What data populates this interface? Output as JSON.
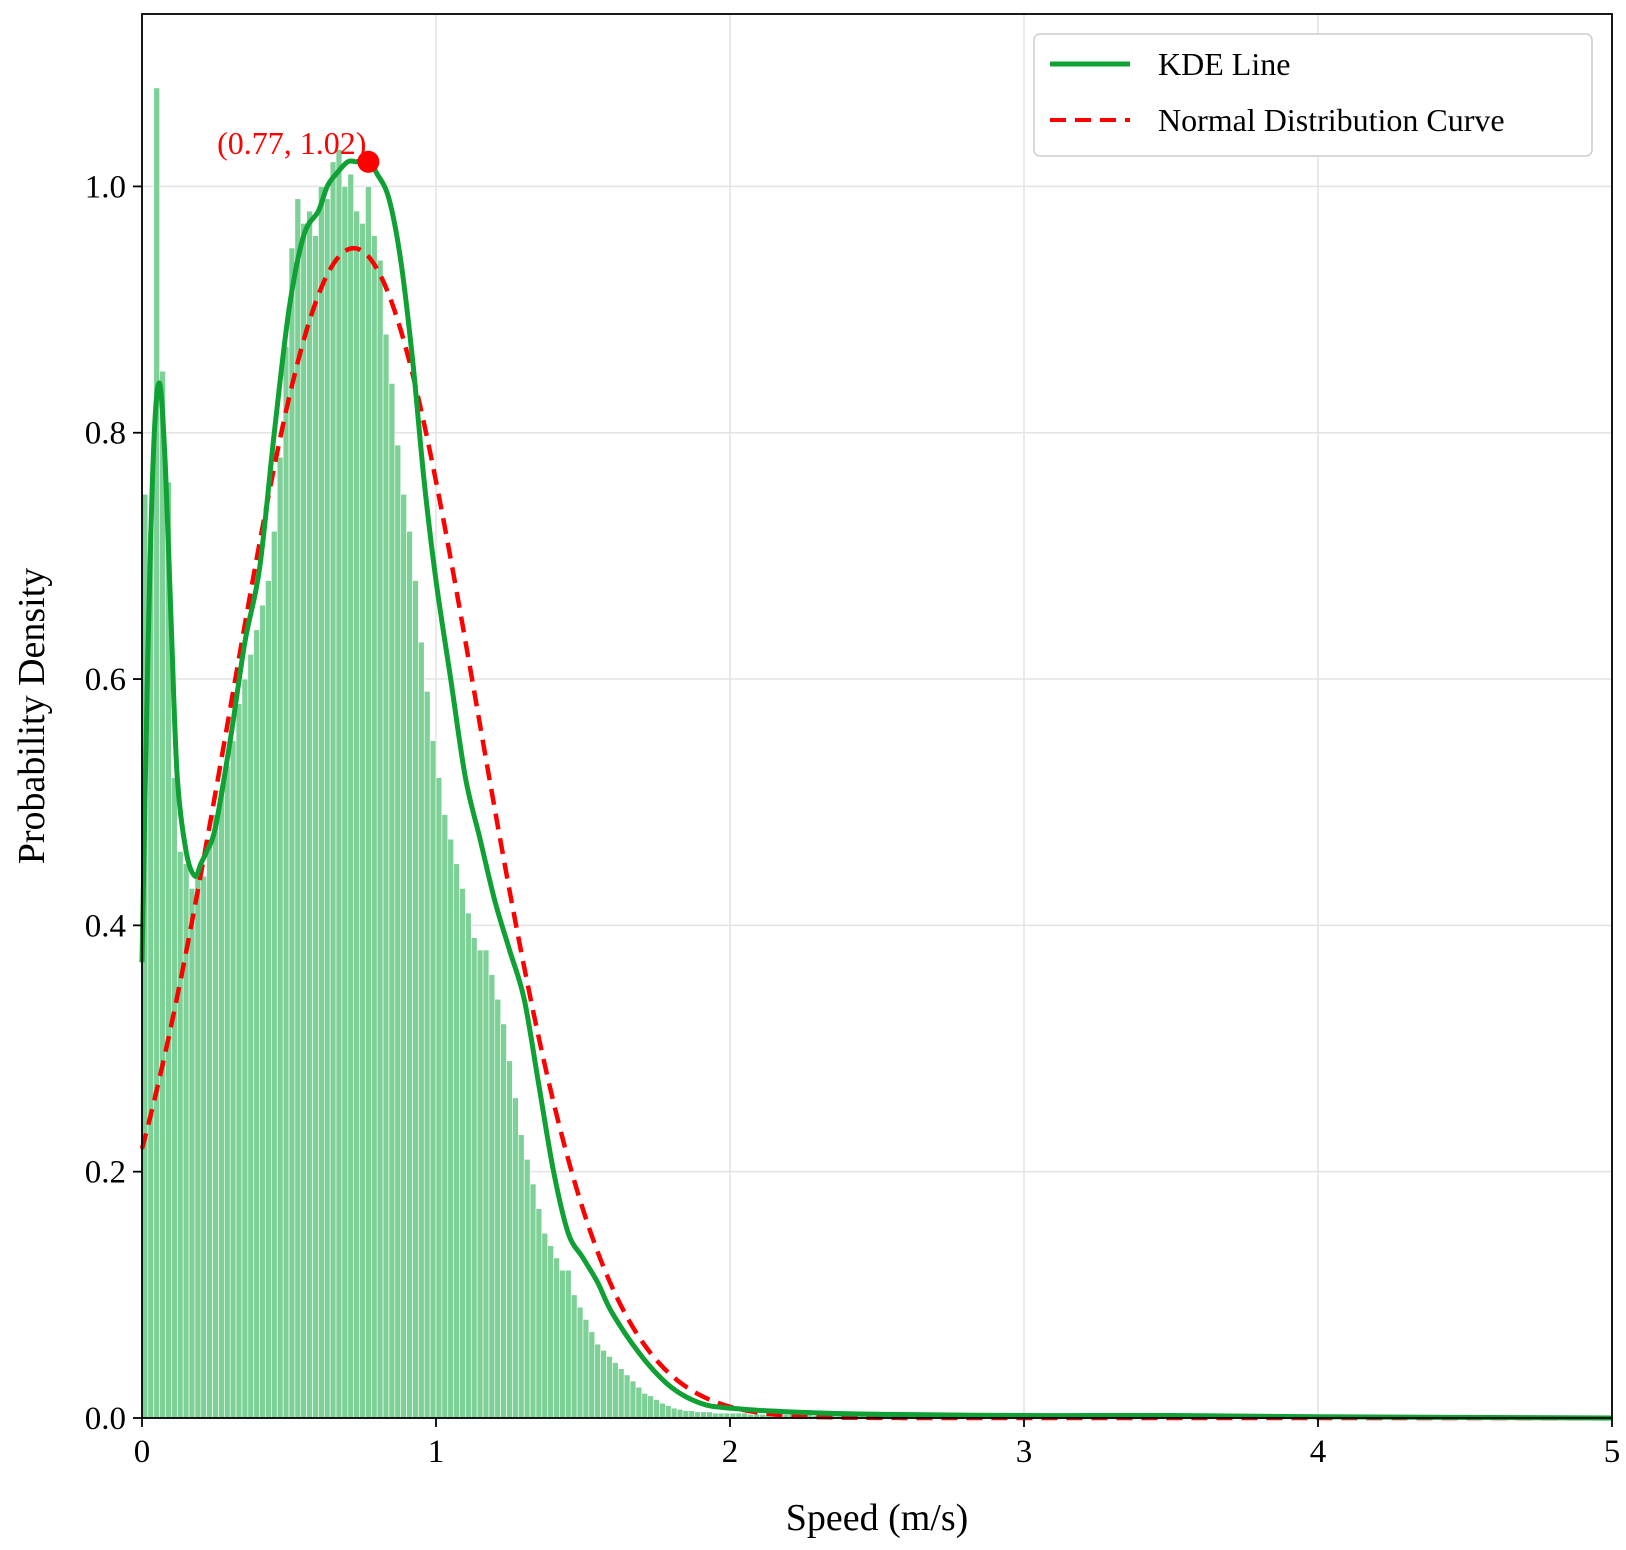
{
  "chart_data": {
    "type": "bar",
    "title": "",
    "xlabel": "Speed (m/s)",
    "ylabel": "Probability Density",
    "xlim": [
      0,
      5
    ],
    "ylim": [
      0,
      1.14
    ],
    "x_ticks": [
      0,
      1,
      2,
      3,
      4,
      5
    ],
    "x_tick_labels": [
      "0",
      "1",
      "2",
      "3",
      "4",
      "5"
    ],
    "y_ticks": [
      0.0,
      0.2,
      0.4,
      0.6,
      0.8,
      1.0
    ],
    "y_tick_labels": [
      "0.0",
      "0.2",
      "0.4",
      "0.6",
      "0.8",
      "1.0"
    ],
    "grid": true,
    "legend_position": "top-right",
    "histogram": {
      "bin_width": 0.02,
      "bin_start": 0,
      "color": "#7dd197",
      "edge_color": "#ffffff",
      "density": [
        0.75,
        0.72,
        1.08,
        0.85,
        0.76,
        0.52,
        0.46,
        0.45,
        0.43,
        0.44,
        0.44,
        0.47,
        0.49,
        0.51,
        0.53,
        0.55,
        0.58,
        0.6,
        0.62,
        0.64,
        0.66,
        0.68,
        0.72,
        0.78,
        0.87,
        0.95,
        0.99,
        0.97,
        0.98,
        0.96,
        1.0,
        0.99,
        1.02,
        1.03,
        1.0,
        1.01,
        0.98,
        0.97,
        1.0,
        0.96,
        0.94,
        0.88,
        0.84,
        0.79,
        0.75,
        0.72,
        0.68,
        0.63,
        0.59,
        0.55,
        0.52,
        0.49,
        0.47,
        0.45,
        0.43,
        0.41,
        0.39,
        0.38,
        0.38,
        0.36,
        0.34,
        0.32,
        0.29,
        0.26,
        0.23,
        0.21,
        0.19,
        0.17,
        0.15,
        0.14,
        0.13,
        0.12,
        0.12,
        0.1,
        0.09,
        0.08,
        0.07,
        0.06,
        0.055,
        0.05,
        0.045,
        0.04,
        0.035,
        0.03,
        0.025,
        0.02,
        0.018,
        0.015,
        0.012,
        0.01,
        0.008,
        0.007,
        0.006,
        0.006,
        0.005,
        0.005,
        0.005,
        0.004,
        0.004,
        0.004,
        0.004,
        0.004,
        0.004,
        0.003,
        0.003,
        0.003,
        0.003,
        0.003,
        0.003,
        0.003,
        0.003,
        0.003,
        0.003,
        0.003,
        0.002,
        0.002,
        0.002,
        0.002,
        0.002,
        0.002,
        0.002,
        0.002,
        0.002,
        0.002,
        0.002,
        0.002,
        0.002,
        0.002,
        0.002,
        0.002,
        0.002,
        0.002,
        0.002,
        0.002,
        0.002,
        0.002,
        0.002,
        0.002,
        0.002,
        0.002,
        0.002,
        0.002,
        0.002,
        0.002,
        0.002,
        0.002,
        0.002,
        0.002,
        0.002,
        0.002,
        0.002,
        0.002,
        0.002,
        0.002,
        0.002,
        0.002,
        0.002,
        0.002,
        0.002,
        0.002,
        0.002,
        0.002,
        0.002,
        0.002,
        0.002,
        0.002,
        0.002,
        0.002,
        0.002,
        0.002,
        0.002,
        0.002,
        0.002,
        0.002,
        0.002,
        0.002,
        0.002,
        0.002,
        0.002,
        0.002,
        0.002,
        0.002,
        0.002,
        0.002,
        0.002,
        0.002,
        0.002,
        0.002,
        0.002,
        0.002,
        0.002,
        0.002,
        0.002,
        0.002,
        0.002,
        0.002,
        0.002,
        0.002,
        0.002,
        0.002,
        0.002,
        0.002,
        0.002,
        0.002,
        0.002,
        0.002,
        0.002,
        0.002,
        0.002,
        0.002,
        0.002,
        0.002,
        0.002,
        0.002,
        0.002,
        0.002,
        0.002,
        0.002,
        0.002,
        0.002,
        0.002,
        0.002,
        0.002,
        0.002,
        0.002,
        0.002,
        0.002,
        0.002,
        0.002,
        0.002,
        0.002,
        0.002,
        0.002,
        0.002,
        0.002,
        0.002,
        0.002,
        0.002,
        0.002,
        0.002,
        0.001,
        0.001,
        0.001,
        0.001,
        0.001,
        0.001,
        0.001,
        0.001,
        0.001,
        0.001
      ]
    },
    "series": [
      {
        "name": "KDE Line",
        "style": "solid",
        "color": "#0fa134",
        "x": [
          0,
          0.02,
          0.04,
          0.06,
          0.08,
          0.1,
          0.12,
          0.15,
          0.18,
          0.2,
          0.22,
          0.25,
          0.3,
          0.35,
          0.4,
          0.45,
          0.5,
          0.55,
          0.6,
          0.63,
          0.66,
          0.7,
          0.73,
          0.77,
          0.8,
          0.84,
          0.88,
          0.92,
          0.96,
          1.0,
          1.05,
          1.1,
          1.15,
          1.2,
          1.25,
          1.3,
          1.35,
          1.4,
          1.45,
          1.5,
          1.55,
          1.6,
          1.7,
          1.8,
          1.9,
          2.0,
          2.2,
          2.5,
          3.0,
          3.5,
          4.0,
          5.0
        ],
        "y": [
          0.37,
          0.62,
          0.79,
          0.84,
          0.77,
          0.64,
          0.52,
          0.46,
          0.44,
          0.45,
          0.46,
          0.48,
          0.55,
          0.63,
          0.69,
          0.8,
          0.9,
          0.96,
          0.98,
          1.0,
          1.01,
          1.02,
          1.02,
          1.02,
          1.01,
          0.99,
          0.94,
          0.86,
          0.76,
          0.68,
          0.6,
          0.52,
          0.47,
          0.42,
          0.38,
          0.34,
          0.27,
          0.2,
          0.15,
          0.13,
          0.11,
          0.085,
          0.05,
          0.025,
          0.012,
          0.008,
          0.005,
          0.003,
          0.002,
          0.002,
          0.001,
          0.0
        ]
      },
      {
        "name": "Normal Distribution Curve",
        "style": "dashed",
        "color": "#ff0000",
        "mean": 0.72,
        "std": 0.42
      }
    ],
    "annotations": [
      {
        "text": "(0.77, 1.02)",
        "x": 0.77,
        "y": 1.02,
        "color": "#ff0000"
      }
    ]
  }
}
